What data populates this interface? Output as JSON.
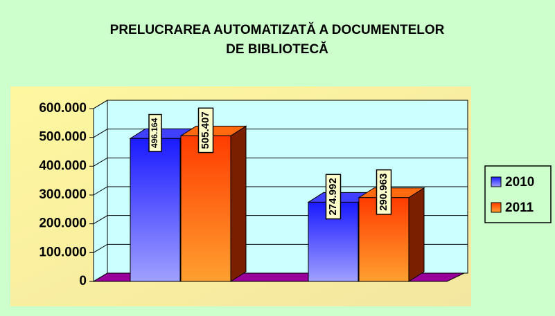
{
  "chart_data": {
    "type": "bar3d",
    "title": [
      "PRELUCRAREA AUTOMATIZATĂ A DOCUMENTELOR",
      "DE BIBLIOTECĂ"
    ],
    "categories": [
      null,
      null
    ],
    "series": [
      {
        "name": "2010",
        "color": "#3333ff",
        "values": [
          496164,
          274992
        ],
        "value_labels": [
          "496.164",
          "274.992"
        ]
      },
      {
        "name": "2011",
        "color": "#ff5a00",
        "values": [
          505407,
          290963
        ],
        "value_labels": [
          "505.407",
          "290.963"
        ]
      }
    ],
    "ylim": [
      0,
      600000
    ],
    "yticks": [
      0,
      {
        "value": 100000,
        "label": "100.000"
      },
      {
        "value": 200000,
        "label": "200.000"
      },
      {
        "value": 300000,
        "label": "300.000"
      },
      {
        "value": 400000,
        "label": "400.000"
      },
      {
        "value": 500000,
        "label": "500.000"
      },
      {
        "value": 600000,
        "label": "600.000"
      }
    ],
    "grid": true,
    "legend": "right"
  }
}
